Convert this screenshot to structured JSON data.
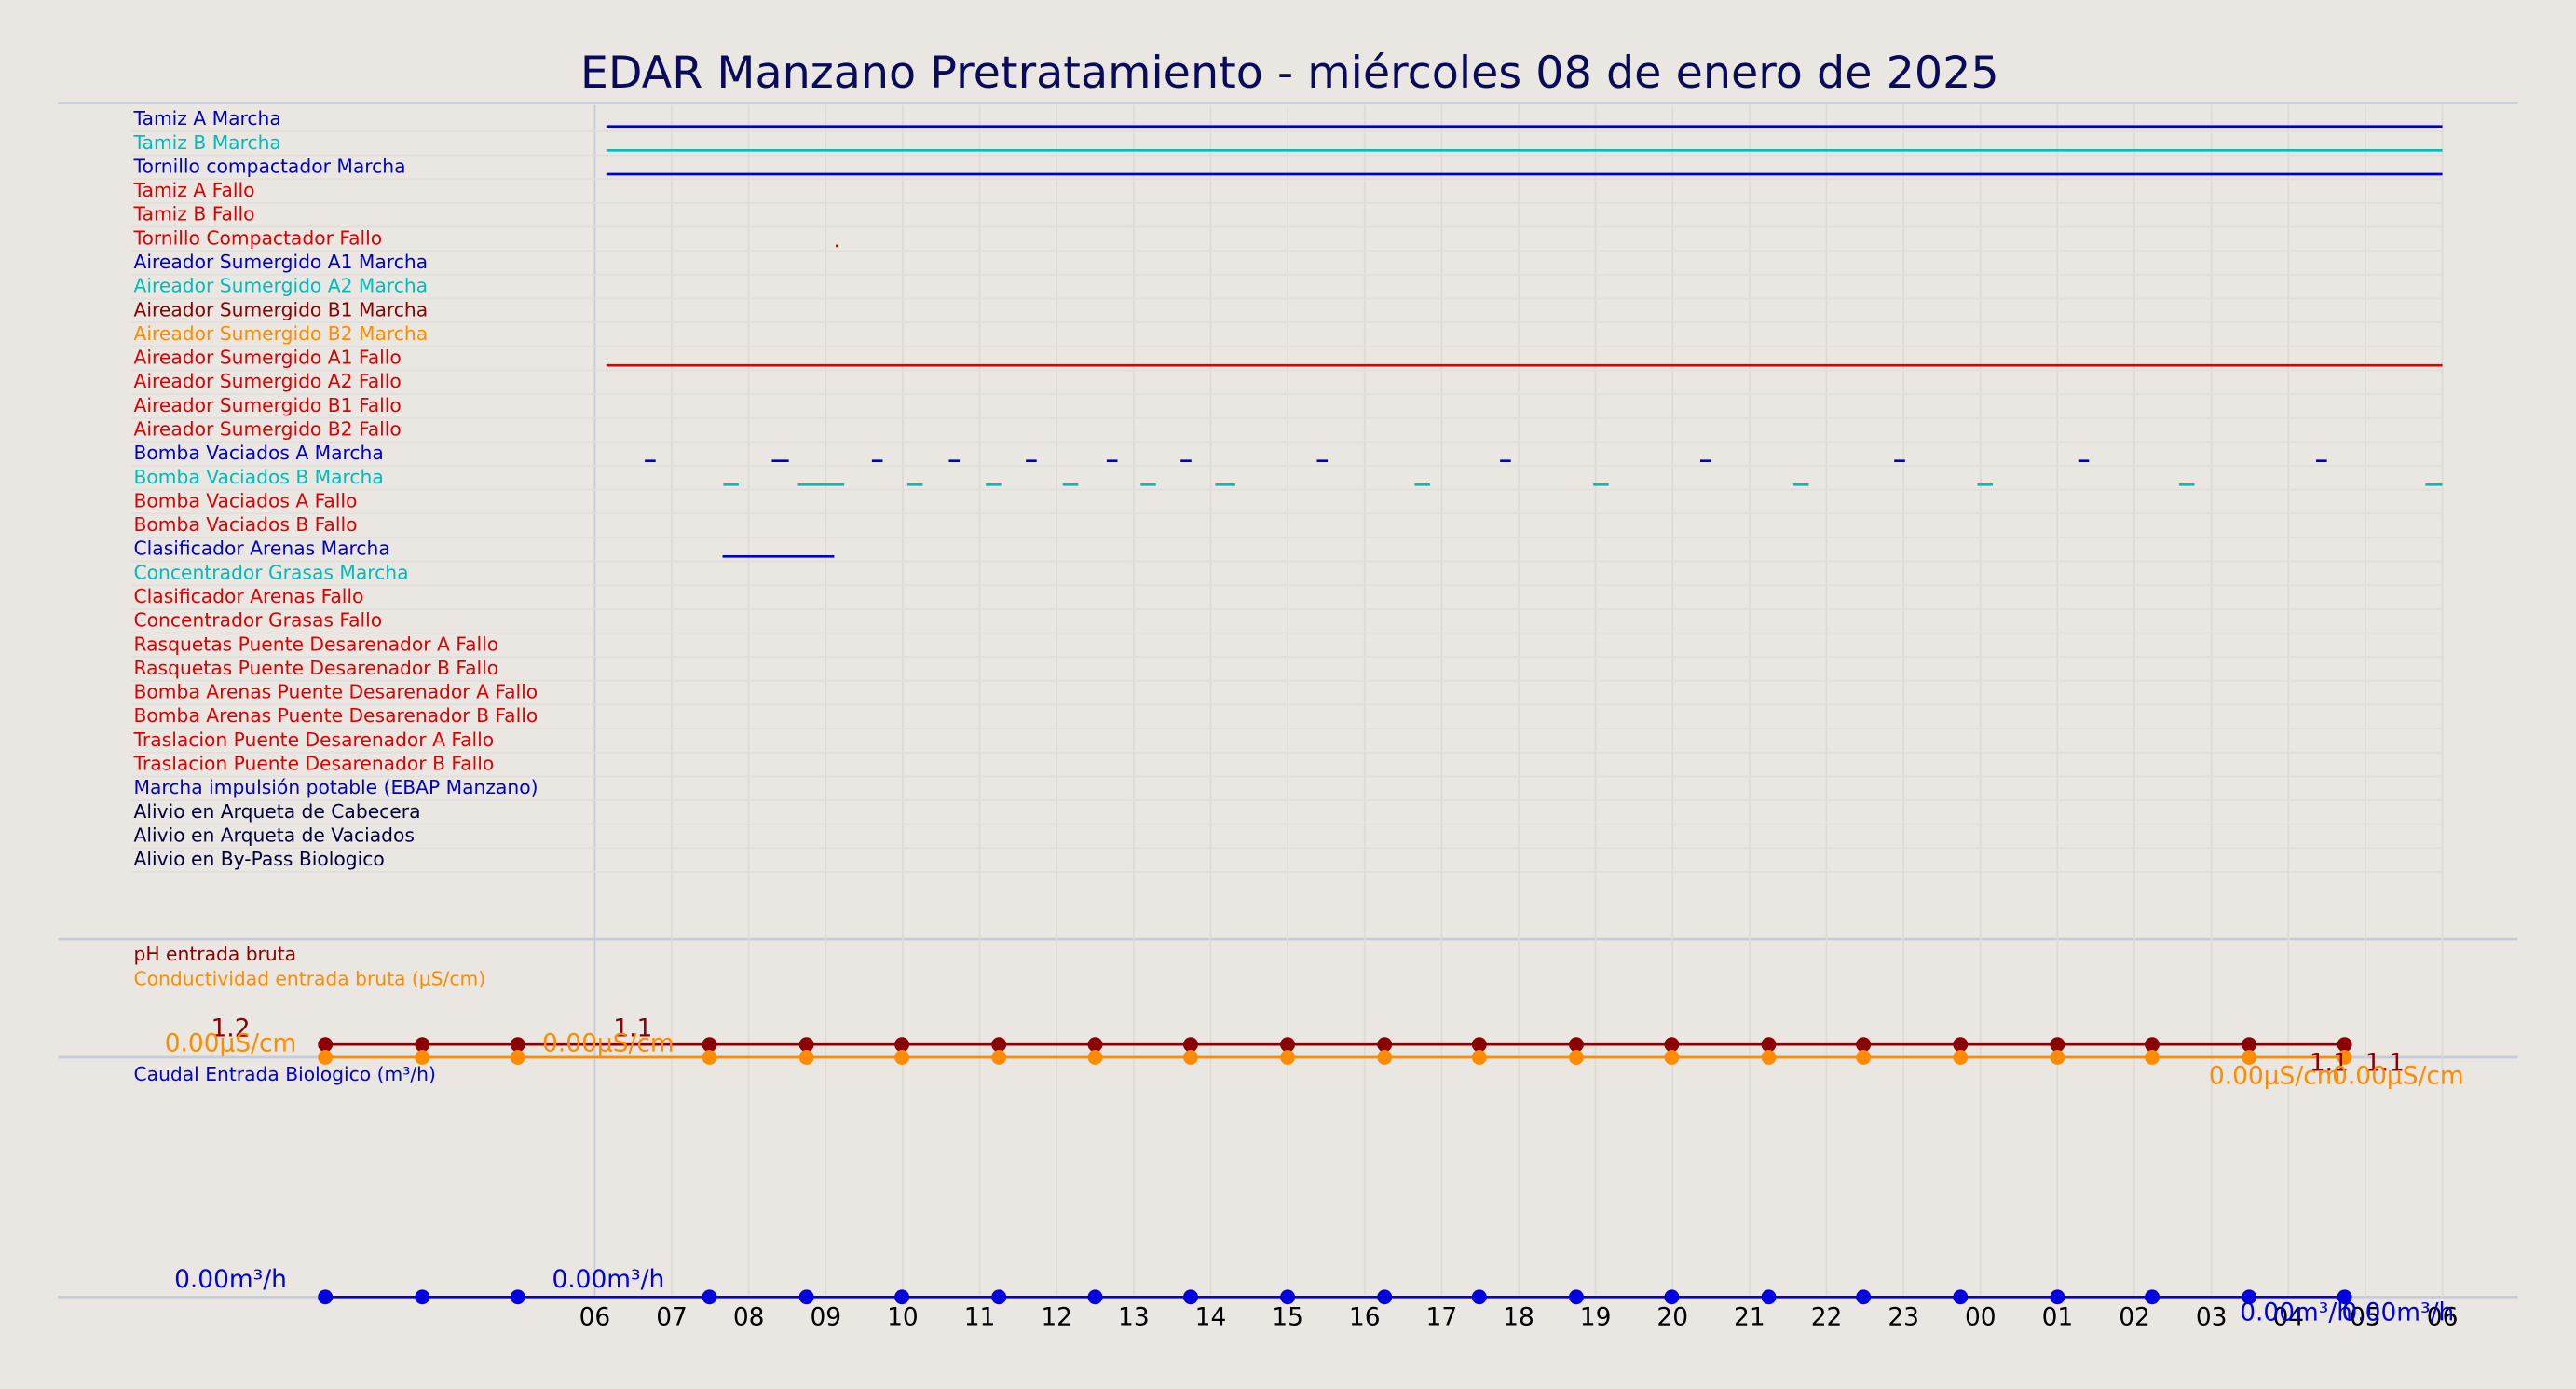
{
  "chart_data": [
    {
      "type": "timeline",
      "title": "EDAR Manzano Pretratamiento   -   miércoles 08 de enero de 2025",
      "xlim": [
        -6.97,
        24.98
      ],
      "signals": [
        {
          "name": "Tamiz A Marcha",
          "color": "#0000cd",
          "segments": [
            [
              0.15,
              24
            ]
          ]
        },
        {
          "name": "Tamiz B Marcha",
          "color": "#00bcbc",
          "segments": [
            [
              0.15,
              24
            ]
          ]
        },
        {
          "name": "Tornillo compactador Marcha",
          "color": "#0000cd",
          "segments": [
            [
              0.15,
              24
            ]
          ]
        },
        {
          "name": "Tamiz A Fallo",
          "color": "#e00000",
          "segments": []
        },
        {
          "name": "Tamiz B Fallo",
          "color": "#e00000",
          "segments": []
        },
        {
          "name": "Tornillo Compactador Fallo",
          "color": "#e00000",
          "segments": [
            [
              3.13,
              3.16
            ]
          ]
        },
        {
          "name": "Aireador Sumergido A1 Marcha",
          "color": "#0000cd",
          "segments": []
        },
        {
          "name": "Aireador Sumergido A2 Marcha",
          "color": "#00bcbc",
          "segments": []
        },
        {
          "name": "Aireador Sumergido B1 Marcha",
          "color": "#8b0000",
          "segments": []
        },
        {
          "name": "Aireador Sumergido B2 Marcha",
          "color": "#ff8c00",
          "segments": []
        },
        {
          "name": "Aireador Sumergido A1 Fallo",
          "color": "#e00000",
          "segments": [
            [
              0.15,
              24
            ]
          ]
        },
        {
          "name": "Aireador Sumergido A2 Fallo",
          "color": "#e00000",
          "segments": []
        },
        {
          "name": "Aireador Sumergido B1 Fallo",
          "color": "#e00000",
          "segments": []
        },
        {
          "name": "Aireador Sumergido B2 Fallo",
          "color": "#e00000",
          "segments": []
        },
        {
          "name": "Bomba Vaciados A Marcha",
          "color": "#0000cd",
          "segments": [
            [
              0.65,
              0.79
            ],
            [
              2.3,
              2.52
            ],
            [
              3.6,
              3.74
            ],
            [
              4.6,
              4.74
            ],
            [
              5.6,
              5.74
            ],
            [
              6.65,
              6.79
            ],
            [
              7.61,
              7.75
            ],
            [
              9.38,
              9.52
            ],
            [
              11.76,
              11.9
            ],
            [
              14.36,
              14.5
            ],
            [
              16.88,
              17.02
            ],
            [
              19.27,
              19.41
            ],
            [
              22.36,
              22.5
            ]
          ]
        },
        {
          "name": "Bomba Vaciados B Marcha",
          "color": "#00bcbc",
          "segments": [
            [
              1.67,
              1.87
            ],
            [
              2.64,
              3.24
            ],
            [
              4.06,
              4.26
            ],
            [
              5.08,
              5.28
            ],
            [
              6.08,
              6.28
            ],
            [
              7.09,
              7.29
            ],
            [
              8.06,
              8.32
            ],
            [
              10.65,
              10.85
            ],
            [
              12.97,
              13.17
            ],
            [
              15.57,
              15.77
            ],
            [
              17.96,
              18.16
            ],
            [
              20.58,
              20.78
            ],
            [
              23.78,
              24
            ]
          ]
        },
        {
          "name": "Bomba Vaciados A Fallo",
          "color": "#e00000",
          "segments": []
        },
        {
          "name": "Bomba Vaciados B Fallo",
          "color": "#e00000",
          "segments": []
        },
        {
          "name": "Clasificador Arenas Marcha",
          "color": "#0000cd",
          "segments": [
            [
              1.66,
              3.11
            ]
          ]
        },
        {
          "name": "Concentrador Grasas Marcha",
          "color": "#00bcbc",
          "segments": []
        },
        {
          "name": "Clasificador Arenas Fallo",
          "color": "#e00000",
          "segments": []
        },
        {
          "name": "Concentrador Grasas Fallo",
          "color": "#e00000",
          "segments": []
        },
        {
          "name": "Rasquetas Puente Desarenador A Fallo",
          "color": "#e00000",
          "segments": []
        },
        {
          "name": "Rasquetas Puente Desarenador B Fallo",
          "color": "#e00000",
          "segments": []
        },
        {
          "name": "Bomba Arenas Puente Desarenador A Fallo",
          "color": "#e00000",
          "segments": []
        },
        {
          "name": "Bomba Arenas Puente Desarenador B Fallo",
          "color": "#e00000",
          "segments": []
        },
        {
          "name": "Traslacion Puente Desarenador A Fallo",
          "color": "#e00000",
          "segments": []
        },
        {
          "name": "Traslacion Puente Desarenador B Fallo",
          "color": "#e00000",
          "segments": []
        },
        {
          "name": "Marcha impulsión potable (EBAP Manzano)",
          "color": "#0000cd",
          "segments": []
        },
        {
          "name": "Alivio en Arqueta de Cabecera",
          "color": "#000040",
          "segments": []
        },
        {
          "name": "Alivio en Arqueta de Vaciados",
          "color": "#000040",
          "segments": []
        },
        {
          "name": "Alivio en By-Pass Biologico",
          "color": "#000040",
          "segments": []
        }
      ]
    },
    {
      "type": "line",
      "xlim": [
        -6.97,
        24.98
      ],
      "ylim": [
        0,
        10
      ],
      "x": [
        -3.5,
        -2.24,
        -1.0,
        1.49,
        2.75,
        3.99,
        5.25,
        6.5,
        7.74,
        9.0,
        10.26,
        11.49,
        12.75,
        13.99,
        15.25,
        16.48,
        17.74,
        19.0,
        20.23,
        21.49,
        22.73
      ],
      "series": [
        {
          "name": "pH entrada bruta",
          "color": "#8b0000",
          "values": [
            1.1,
            1.1,
            1.1,
            1.1,
            1.1,
            1.1,
            1.1,
            1.1,
            1.1,
            1.1,
            1.1,
            1.1,
            1.1,
            1.1,
            1.1,
            1.1,
            1.1,
            1.1,
            1.1,
            1.1,
            1.1
          ]
        },
        {
          "name": "Conductividad entrada bruta (μS/cm)",
          "color": "#ff8c00",
          "values": [
            0,
            0,
            0,
            0,
            0,
            0,
            0,
            0,
            0,
            0,
            0,
            0,
            0,
            0,
            0,
            0,
            0,
            0,
            0,
            0,
            0
          ]
        }
      ],
      "annotations": [
        {
          "text": "1.2",
          "color": "#8b0000"
        },
        {
          "text": "0.00μS/cm",
          "color": "#ff8c00"
        },
        {
          "text": "1.1",
          "color": "#8b0000"
        },
        {
          "text": "0.00μS/cm",
          "color": "#ff8c00"
        },
        {
          "text": "1.1",
          "color": "#8b0000"
        },
        {
          "text": "1.1",
          "color": "#8b0000"
        },
        {
          "text": "0.00μS/cm",
          "color": "#ff8c00"
        },
        {
          "text": "0.00μS/cm",
          "color": "#ff8c00"
        }
      ]
    },
    {
      "type": "line",
      "xlim": [
        -6.97,
        24.98
      ],
      "ylim": [
        0,
        1
      ],
      "x": [
        -3.5,
        -2.24,
        -1.0,
        1.49,
        2.75,
        3.99,
        5.25,
        6.5,
        7.74,
        9.0,
        10.26,
        11.49,
        12.75,
        13.99,
        15.25,
        16.48,
        17.74,
        19.0,
        20.23,
        21.49,
        22.73
      ],
      "series": [
        {
          "name": "Caudal Entrada Biologico (m³/h)",
          "color": "#0000e0",
          "values": [
            0,
            0,
            0,
            0,
            0,
            0,
            0,
            0,
            0,
            0,
            0,
            0,
            0,
            0,
            0,
            0,
            0,
            0,
            0,
            0,
            0
          ]
        }
      ],
      "annotations": [
        {
          "text": "0.00m³/h",
          "color": "#0000e0"
        },
        {
          "text": "0.00m³/h",
          "color": "#0000e0"
        },
        {
          "text": "0.00m³/h",
          "color": "#0000e0"
        },
        {
          "text": "0.00m³/h",
          "color": "#0000e0"
        }
      ],
      "xticks": [
        {
          "value": 0,
          "label": "06"
        },
        {
          "value": 1,
          "label": "07"
        },
        {
          "value": 2,
          "label": "08"
        },
        {
          "value": 3,
          "label": "09"
        },
        {
          "value": 4,
          "label": "10"
        },
        {
          "value": 5,
          "label": "11"
        },
        {
          "value": 6,
          "label": "12"
        },
        {
          "value": 7,
          "label": "13"
        },
        {
          "value": 8,
          "label": "14"
        },
        {
          "value": 9,
          "label": "15"
        },
        {
          "value": 10,
          "label": "16"
        },
        {
          "value": 11,
          "label": "17"
        },
        {
          "value": 12,
          "label": "18"
        },
        {
          "value": 13,
          "label": "19"
        },
        {
          "value": 14,
          "label": "20"
        },
        {
          "value": 15,
          "label": "21"
        },
        {
          "value": 16,
          "label": "22"
        },
        {
          "value": 17,
          "label": "23"
        },
        {
          "value": 18,
          "label": "00"
        },
        {
          "value": 19,
          "label": "01"
        },
        {
          "value": 20,
          "label": "02"
        },
        {
          "value": 21,
          "label": "03"
        },
        {
          "value": 22,
          "label": "04"
        },
        {
          "value": 23,
          "label": "05"
        },
        {
          "value": 24,
          "label": "06"
        }
      ]
    }
  ]
}
